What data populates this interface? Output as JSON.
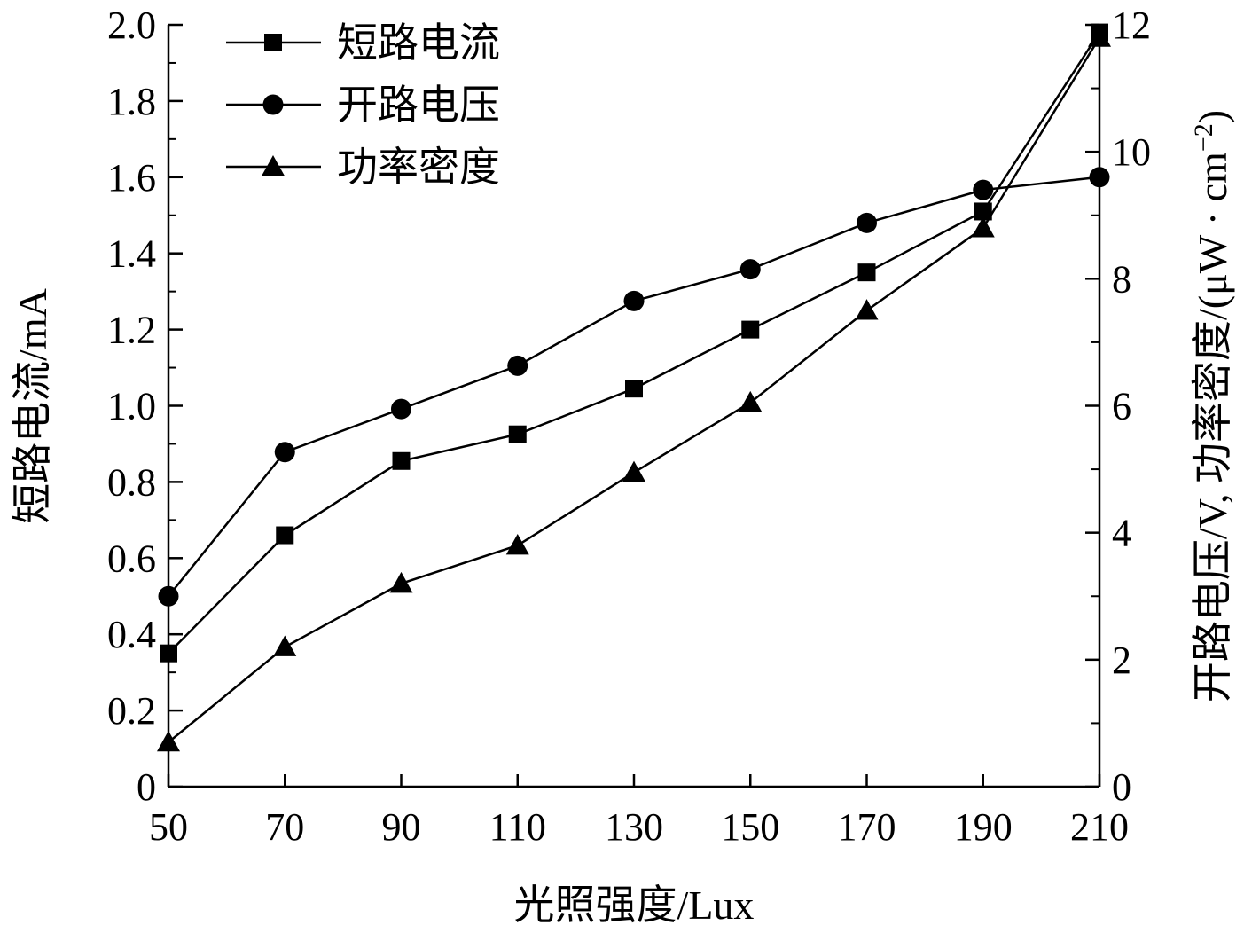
{
  "chart_data": {
    "type": "line",
    "xlabel": "光照强度/Lux",
    "ylabel": "短路电流/mA",
    "y2label_main": "开路电压/V, 功率密度/(μW · cm",
    "y2label_sup": "−2",
    "y2label_close": ")",
    "x_ticks": [
      "50",
      "70",
      "90",
      "110",
      "130",
      "150",
      "170",
      "190",
      "210"
    ],
    "y_ticks": [
      "0",
      "0.2",
      "0.4",
      "0.6",
      "0.8",
      "1.0",
      "1.2",
      "1.4",
      "1.6",
      "1.8",
      "2.0"
    ],
    "y2_ticks": [
      "0",
      "2",
      "4",
      "6",
      "8",
      "10",
      "12"
    ],
    "xlim": [
      50,
      210
    ],
    "ylim": [
      0,
      2.0
    ],
    "y2lim": [
      0,
      12
    ],
    "grid": false,
    "legend_position": "top-left",
    "x": [
      50,
      70,
      90,
      110,
      130,
      150,
      170,
      190,
      210
    ],
    "series": [
      {
        "name": "短路电流",
        "marker": "square",
        "axis": "left",
        "values": [
          0.35,
          0.66,
          0.855,
          0.925,
          1.045,
          1.2,
          1.35,
          1.51,
          1.98
        ]
      },
      {
        "name": "开路电压",
        "marker": "circle",
        "axis": "right",
        "values": [
          3.0,
          5.27,
          5.95,
          6.63,
          7.65,
          8.15,
          8.88,
          9.4,
          9.6
        ]
      },
      {
        "name": "功率密度",
        "marker": "triangle",
        "axis": "right",
        "values": [
          0.7,
          2.2,
          3.2,
          3.8,
          4.95,
          6.05,
          7.5,
          8.8,
          11.8
        ]
      }
    ],
    "colors": {
      "line": "#000000",
      "background": "#ffffff"
    }
  }
}
